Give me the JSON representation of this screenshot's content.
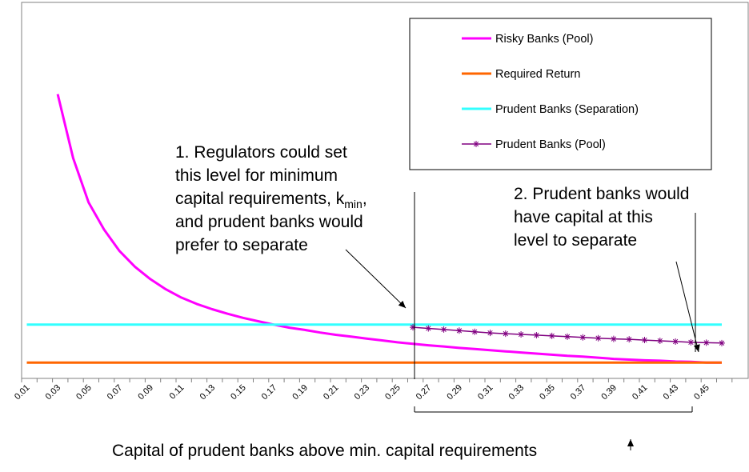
{
  "chart_data": {
    "type": "line",
    "title": "",
    "xlabel": "Capital of prudent banks above min. capital requirements",
    "ylabel": "",
    "x": [
      0.01,
      0.02,
      0.03,
      0.04,
      0.05,
      0.06,
      0.07,
      0.08,
      0.09,
      0.1,
      0.11,
      0.12,
      0.13,
      0.14,
      0.15,
      0.16,
      0.17,
      0.18,
      0.19,
      0.2,
      0.21,
      0.22,
      0.23,
      0.24,
      0.25,
      0.26,
      0.27,
      0.28,
      0.29,
      0.3,
      0.31,
      0.32,
      0.33,
      0.34,
      0.35,
      0.36,
      0.37,
      0.38,
      0.39,
      0.4,
      0.41,
      0.42,
      0.43,
      0.44,
      0.45,
      0.46
    ],
    "x_tick_labels": [
      "0.01",
      "0.03",
      "0.05",
      "0.07",
      "0.09",
      "0.11",
      "0.13",
      "0.15",
      "0.17",
      "0.19",
      "0.21",
      "0.23",
      "0.25",
      "0.27",
      "0.29",
      "0.31",
      "0.33",
      "0.35",
      "0.37",
      "0.39",
      "0.41",
      "0.43",
      "0.45"
    ],
    "y_tick_labels": [],
    "ylim": [
      0,
      100
    ],
    "grid": false,
    "legend_position": "top-right",
    "series": [
      {
        "name": "Risky Banks (Pool)",
        "color": "#ff00ff",
        "marker": "none",
        "values": [
          null,
          null,
          75.6,
          58.6,
          46.8,
          39.6,
          33.9,
          29.7,
          26.4,
          23.7,
          21.5,
          19.8,
          18.4,
          17.2,
          16.1,
          15.2,
          14.3,
          13.5,
          12.9,
          12.2,
          11.6,
          11.1,
          10.6,
          10.1,
          9.6,
          9.2,
          8.8,
          8.5,
          8.1,
          7.8,
          7.5,
          7.2,
          6.9,
          6.6,
          6.3,
          6.0,
          5.8,
          5.5,
          5.2,
          5.0,
          4.8,
          4.7,
          4.5,
          4.4,
          4.2,
          4.2
        ]
      },
      {
        "name": "Required Return",
        "color": "#ff6600",
        "marker": "none",
        "values": [
          4.2,
          4.2,
          4.2,
          4.2,
          4.2,
          4.2,
          4.2,
          4.2,
          4.2,
          4.2,
          4.2,
          4.2,
          4.2,
          4.2,
          4.2,
          4.2,
          4.2,
          4.2,
          4.2,
          4.2,
          4.2,
          4.2,
          4.2,
          4.2,
          4.2,
          4.2,
          4.2,
          4.2,
          4.2,
          4.2,
          4.2,
          4.2,
          4.2,
          4.2,
          4.2,
          4.2,
          4.2,
          4.2,
          4.2,
          4.2,
          4.2,
          4.2,
          4.2,
          4.2,
          4.2,
          4.2
        ]
      },
      {
        "name": "Prudent Banks (Separation)",
        "color": "#33ffff",
        "marker": "none",
        "values": [
          14.3,
          14.3,
          14.3,
          14.3,
          14.3,
          14.3,
          14.3,
          14.3,
          14.3,
          14.3,
          14.3,
          14.3,
          14.3,
          14.3,
          14.3,
          14.3,
          14.3,
          14.3,
          14.3,
          14.3,
          14.3,
          14.3,
          14.3,
          14.3,
          14.3,
          14.3,
          14.3,
          14.3,
          14.3,
          14.3,
          14.3,
          14.3,
          14.3,
          14.3,
          14.3,
          14.3,
          14.3,
          14.3,
          14.3,
          14.3,
          14.3,
          14.3,
          14.3,
          14.3,
          14.3,
          14.3
        ]
      },
      {
        "name": "Prudent Banks (Pool)",
        "color": "#800080",
        "marker": "star",
        "values": [
          null,
          null,
          null,
          null,
          null,
          null,
          null,
          null,
          null,
          null,
          null,
          null,
          null,
          null,
          null,
          null,
          null,
          null,
          null,
          null,
          null,
          null,
          null,
          null,
          null,
          13.6,
          13.3,
          13.0,
          12.7,
          12.4,
          12.1,
          11.9,
          11.7,
          11.5,
          11.3,
          11.1,
          10.9,
          10.7,
          10.5,
          10.4,
          10.2,
          10.0,
          9.8,
          9.6,
          9.5,
          9.4
        ]
      }
    ],
    "annotations": {
      "note1": {
        "lines": [
          "1. Regulators could set",
          "this level for minimum",
          "capital requirements, k",
          "and prudent banks would",
          "prefer to separate"
        ],
        "subscript": "min",
        "trailing": ","
      },
      "note2": {
        "lines": [
          "2. Prudent banks would",
          "have capital at this",
          "level to separate"
        ]
      }
    }
  }
}
